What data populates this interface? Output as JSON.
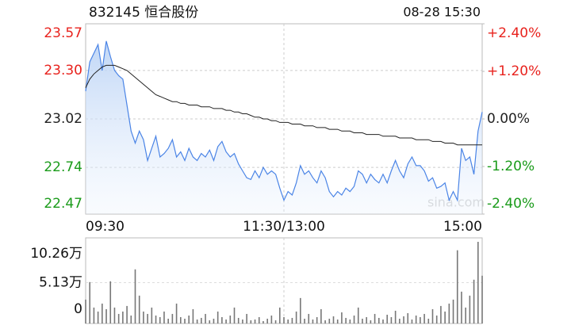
{
  "chart_data": {
    "type": "intraday",
    "title": "832145 恒合股份",
    "timestamp": "08-28 15:30",
    "watermark": "sina.com",
    "xlim": [
      0,
      240
    ],
    "xticks": [
      {
        "value": 0,
        "label": "09:30"
      },
      {
        "value": 120,
        "label": "11:30/13:00"
      },
      {
        "value": 240,
        "label": "15:00"
      }
    ],
    "ylim": [
      22.47,
      23.57
    ],
    "yticks": [
      23.57,
      {
        "value": 23.3,
        "label": "23.30"
      },
      23.02,
      22.74,
      22.47
    ],
    "y2lim": [
      -2.4,
      2.4
    ],
    "y2ticks": [
      {
        "value": 2.4,
        "label": "+2.40%"
      },
      {
        "value": 1.2,
        "label": "+1.20%"
      },
      {
        "value": 0,
        "label": "0.00%"
      },
      {
        "value": -1.2,
        "label": "-1.20%"
      },
      {
        "value": -2.4,
        "label": "-2.40%"
      }
    ],
    "up_color": "#e8221d",
    "down_color": "#1a9b1a",
    "flat_color": "#222222",
    "x": [
      0,
      2.5,
      5,
      7.5,
      10,
      12.5,
      15,
      17.5,
      20,
      22.5,
      25,
      27.5,
      30,
      32.5,
      35,
      37.5,
      40,
      42.5,
      45,
      47.5,
      50,
      52.5,
      55,
      57.5,
      60,
      62.5,
      65,
      67.5,
      70,
      72.5,
      75,
      77.5,
      80,
      82.5,
      85,
      87.5,
      90,
      92.5,
      95,
      97.5,
      100,
      102.5,
      105,
      107.5,
      110,
      112.5,
      115,
      117.5,
      120,
      122.5,
      125,
      127.5,
      130,
      132.5,
      135,
      137.5,
      140,
      142.5,
      145,
      147.5,
      150,
      152.5,
      155,
      157.5,
      160,
      162.5,
      165,
      167.5,
      170,
      172.5,
      175,
      177.5,
      180,
      182.5,
      185,
      187.5,
      190,
      192.5,
      195,
      197.5,
      200,
      202.5,
      205,
      207.5,
      210,
      212.5,
      215,
      217.5,
      220,
      222.5,
      225,
      227.5,
      230,
      232.5,
      235,
      237.5,
      240
    ],
    "series": [
      {
        "name": "price",
        "color": "#4a84e6",
        "values": [
          23.18,
          23.35,
          23.4,
          23.45,
          23.3,
          23.47,
          23.38,
          23.3,
          23.27,
          23.25,
          23.1,
          22.95,
          22.88,
          22.95,
          22.9,
          22.78,
          22.85,
          22.92,
          22.8,
          22.82,
          22.85,
          22.9,
          22.8,
          22.83,
          22.78,
          22.85,
          22.8,
          22.78,
          22.82,
          22.8,
          22.84,
          22.78,
          22.86,
          22.89,
          22.83,
          22.8,
          22.82,
          22.76,
          22.72,
          22.68,
          22.67,
          22.72,
          22.68,
          22.74,
          22.7,
          22.72,
          22.7,
          22.62,
          22.55,
          22.6,
          22.58,
          22.65,
          22.75,
          22.7,
          22.72,
          22.68,
          22.65,
          22.72,
          22.68,
          22.6,
          22.57,
          22.6,
          22.58,
          22.62,
          22.6,
          22.63,
          22.72,
          22.7,
          22.65,
          22.7,
          22.67,
          22.65,
          22.7,
          22.65,
          22.72,
          22.78,
          22.72,
          22.68,
          22.76,
          22.8,
          22.75,
          22.75,
          22.72,
          22.66,
          22.68,
          22.62,
          22.63,
          22.65,
          22.55,
          22.6,
          22.55,
          22.85,
          22.78,
          22.8,
          22.7,
          22.95,
          23.06
        ]
      },
      {
        "name": "average",
        "color": "#222222",
        "values": [
          23.2,
          23.25,
          23.28,
          23.3,
          23.32,
          23.33,
          23.33,
          23.33,
          23.32,
          23.31,
          23.3,
          23.28,
          23.26,
          23.24,
          23.22,
          23.2,
          23.18,
          23.16,
          23.15,
          23.14,
          23.13,
          23.12,
          23.12,
          23.11,
          23.11,
          23.1,
          23.1,
          23.1,
          23.09,
          23.09,
          23.09,
          23.08,
          23.08,
          23.08,
          23.07,
          23.07,
          23.06,
          23.06,
          23.05,
          23.05,
          23.04,
          23.03,
          23.03,
          23.02,
          23.02,
          23.01,
          23.01,
          23.0,
          23.0,
          23.0,
          22.99,
          22.99,
          22.99,
          22.98,
          22.98,
          22.98,
          22.97,
          22.97,
          22.97,
          22.96,
          22.96,
          22.96,
          22.95,
          22.95,
          22.95,
          22.94,
          22.94,
          22.94,
          22.93,
          22.93,
          22.93,
          22.93,
          22.92,
          22.92,
          22.92,
          22.92,
          22.91,
          22.91,
          22.91,
          22.91,
          22.9,
          22.9,
          22.9,
          22.9,
          22.89,
          22.89,
          22.89,
          22.88,
          22.88,
          22.88,
          22.87,
          22.87,
          22.87,
          22.87,
          22.87,
          22.87,
          22.87
        ]
      }
    ],
    "volume": {
      "color": "#777777",
      "ylim": [
        0,
        10.26
      ],
      "yticks": [
        {
          "value": 10.26,
          "label": "10.26万"
        },
        {
          "value": 5.13,
          "label": "5.13万"
        },
        0
      ],
      "values": [
        3.0,
        5.2,
        2.0,
        1.5,
        2.5,
        1.8,
        5.3,
        2.0,
        1.2,
        1.5,
        2.2,
        1.0,
        6.8,
        3.5,
        1.5,
        1.2,
        2.0,
        1.0,
        0.8,
        1.5,
        0.6,
        1.2,
        2.5,
        0.8,
        0.6,
        1.0,
        1.8,
        0.5,
        0.7,
        1.2,
        0.4,
        0.6,
        1.5,
        0.8,
        0.5,
        1.0,
        2.0,
        0.7,
        0.5,
        1.2,
        0.4,
        0.5,
        0.8,
        0.3,
        0.6,
        1.0,
        0.4,
        2.0,
        0.8,
        0.5,
        0.7,
        1.5,
        3.2,
        0.6,
        1.2,
        0.5,
        0.8,
        1.8,
        0.4,
        0.6,
        0.9,
        0.5,
        1.4,
        0.7,
        0.5,
        1.0,
        2.0,
        0.6,
        0.8,
        0.4,
        1.2,
        0.7,
        0.5,
        1.1,
        0.8,
        1.6,
        0.6,
        0.9,
        1.3,
        0.5,
        1.0,
        0.8,
        1.2,
        0.6,
        1.8,
        1.0,
        2.2,
        1.5,
        2.5,
        3.0,
        9.2,
        4.0,
        2.0,
        3.5,
        5.5,
        10.26,
        6.0
      ]
    }
  }
}
